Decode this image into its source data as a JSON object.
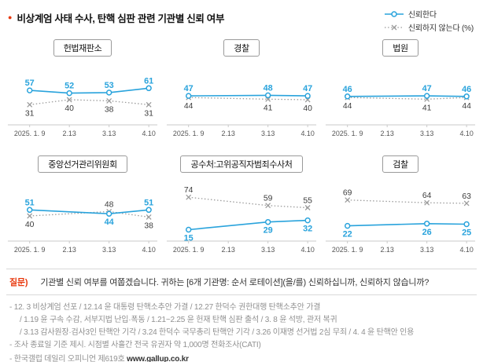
{
  "header": {
    "title": "비상계엄 사태 수사, 탄핵 심판 관련 기관별 신뢰 여부",
    "legend": {
      "trust": "신뢰한다",
      "distrust": "신뢰하지 않는다 (%)"
    }
  },
  "colors": {
    "trust": "#29a3dc",
    "distrust": "#9b9b9b",
    "accent_red": "#e8380d",
    "axis": "#c9c9c9",
    "distrust_label": "#3c3c3c"
  },
  "chart_data": {
    "type": "line",
    "x": [
      "2025. 1. 9",
      "2.13",
      "3.13",
      "4.10"
    ],
    "ylim": [
      0,
      100
    ],
    "unit": "%",
    "series_names": [
      "신뢰한다",
      "신뢰하지 않는다"
    ],
    "panels": [
      {
        "title": "헌법재판소",
        "trust": [
          57,
          52,
          53,
          61
        ],
        "distrust": [
          31,
          40,
          38,
          31
        ]
      },
      {
        "title": "경찰",
        "trust": [
          47,
          null,
          48,
          47
        ],
        "distrust": [
          44,
          null,
          41,
          40
        ]
      },
      {
        "title": "법원",
        "trust": [
          46,
          null,
          47,
          46
        ],
        "distrust": [
          44,
          null,
          41,
          44
        ]
      },
      {
        "title": "중앙선거관리위원회",
        "trust": [
          51,
          null,
          44,
          51
        ],
        "distrust": [
          40,
          null,
          48,
          38
        ]
      },
      {
        "title": "공수처:고위공직자범죄수사처",
        "trust": [
          15,
          null,
          29,
          32
        ],
        "distrust": [
          74,
          null,
          59,
          55
        ]
      },
      {
        "title": "검찰",
        "trust": [
          22,
          null,
          26,
          25
        ],
        "distrust": [
          69,
          null,
          64,
          63
        ]
      }
    ]
  },
  "question": {
    "label": "질문)",
    "text": "기관별 신뢰 여부를 여쭙겠습니다. 귀하는 [6개 기관명: 순서 로테이션](을/를) 신뢰하십니까, 신뢰하지 않습니까?"
  },
  "notes": {
    "lines": [
      "- 12. 3 비상계엄 선포 / 12.14 윤 대통령 탄핵소추안 가결 / 12.27 한덕수 권한대행 탄핵소추안 가결",
      "/ 1.19 윤 구속 수감, 서부지법 난입·폭동 / 1.21~2.25 윤 헌재 탄핵 심판 출석 / 3. 8 윤 석방, 관저 복귀",
      "/ 3.13 감사원장·검사3인 탄핵안 기각 / 3.24 한덕수 국무총리 탄핵안 기각 / 3.26 이재명 선거법 2심 무죄 / 4. 4 윤 탄핵안 인용",
      "- 조사 종료일 기준 제시. 시점별 사흘간 전국 유권자 약 1,000명 전화조사(CATI)"
    ]
  },
  "footer": {
    "label": "- 한국갤럽 데일리 오피니언 제619호",
    "url": "www.gallup.co.kr"
  }
}
